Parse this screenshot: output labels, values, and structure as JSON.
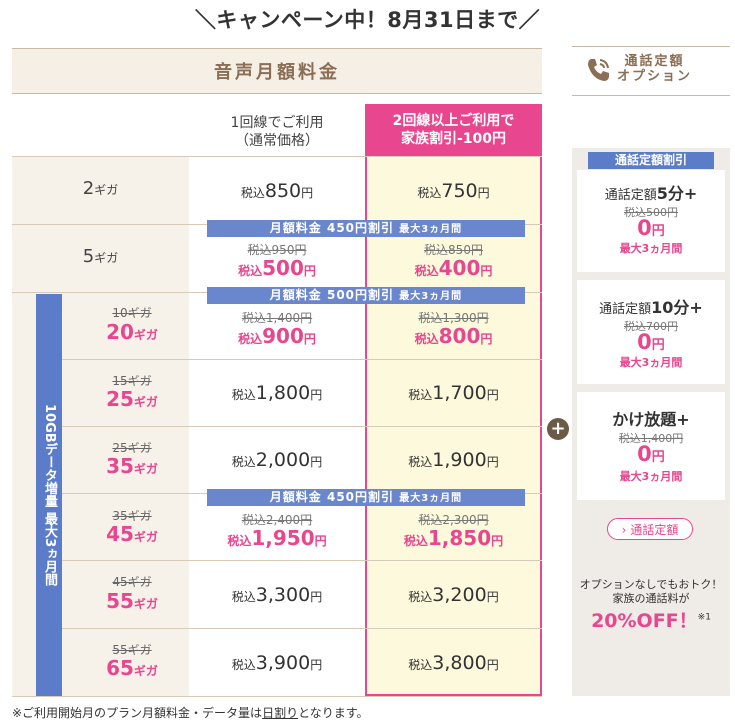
{
  "campaign": "＼キャンペーン中！8月31日まで／",
  "header": {
    "title": "音声月額料金"
  },
  "columns": {
    "single_line1": "1回線でご利用",
    "single_line2": "（通常価格）",
    "family_line1": "2回線以上ご利用で",
    "family_line2": "家族割引-100円"
  },
  "vertical_label": "10GBデータ増量 最大3ヵ月間",
  "labels": {
    "tax": "税込",
    "yen": "円",
    "giga": "ギガ"
  },
  "plans": [
    {
      "gb": "2",
      "single": "850",
      "family": "750"
    },
    {
      "gb": "5",
      "single_old": "税込950円",
      "single": "500",
      "family_old": "税込850円",
      "family": "400",
      "banner": "月額料金 450円割引",
      "banner_sub": "最大3ヵ月間"
    },
    {
      "old_gb": "10ギガ",
      "gb": "20",
      "single_old": "税込1,400円",
      "single": "900",
      "family_old": "税込1,300円",
      "family": "800",
      "banner": "月額料金 500円割引",
      "banner_sub": "最大3ヵ月間"
    },
    {
      "old_gb": "15ギガ",
      "gb": "25",
      "single": "1,800",
      "family": "1,700"
    },
    {
      "old_gb": "25ギガ",
      "gb": "35",
      "single": "2,000",
      "family": "1,900"
    },
    {
      "old_gb": "35ギガ",
      "gb": "45",
      "single_old": "税込2,400円",
      "single": "1,950",
      "family_old": "税込2,300円",
      "family": "1,850",
      "banner": "月額料金 450円割引",
      "banner_sub": "最大3ヵ月間"
    },
    {
      "old_gb": "45ギガ",
      "gb": "55",
      "single": "3,300",
      "family": "3,200"
    },
    {
      "old_gb": "55ギガ",
      "gb": "65",
      "single": "3,900",
      "family": "3,800"
    }
  ],
  "footnote": {
    "pre": "※ご利用開始月のプラン月額料金・データ量は",
    "link": "日割り",
    "post": "となります。"
  },
  "option": {
    "title1": "通話定額",
    "title2": "オプション",
    "tag": "通話定額割引",
    "cards": [
      {
        "prefix": "通話定額",
        "bold": "5分+",
        "old": "税込500円",
        "price": "0",
        "note": "最大3ヵ月間"
      },
      {
        "prefix": "通話定額",
        "bold": "10分+",
        "old": "税込700円",
        "price": "0",
        "note": "最大3ヵ月間"
      },
      {
        "prefix": "",
        "bold": "かけ放題+",
        "old": "税込1,400円",
        "price": "0",
        "note": "最大3ヵ月間"
      }
    ],
    "button": "通話定額",
    "foot1": "オプションなしでもおトク！",
    "foot2": "家族の通話料が",
    "foot3": "20%OFF！",
    "foot3_note": "※1"
  },
  "plus": "+",
  "colors": {
    "pink": "#e8468e",
    "blue": "#5b7cc8",
    "brown": "#8a6e55",
    "cream": "#fdf9dc"
  }
}
